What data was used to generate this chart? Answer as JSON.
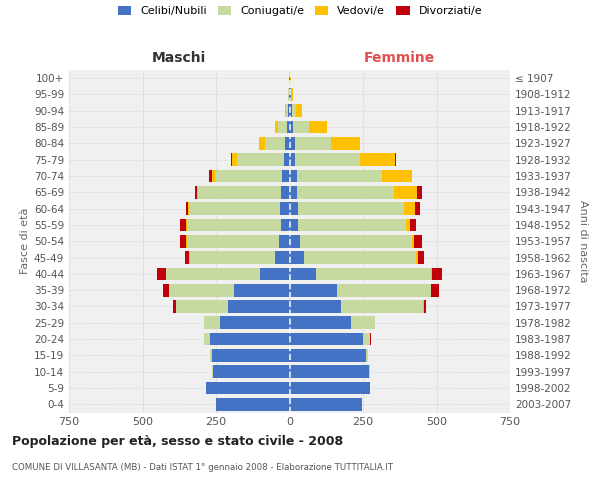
{
  "age_groups": [
    "0-4",
    "5-9",
    "10-14",
    "15-19",
    "20-24",
    "25-29",
    "30-34",
    "35-39",
    "40-44",
    "45-49",
    "50-54",
    "55-59",
    "60-64",
    "65-69",
    "70-74",
    "75-79",
    "80-84",
    "85-89",
    "90-94",
    "95-99",
    "100+"
  ],
  "birth_years": [
    "2003-2007",
    "1998-2002",
    "1993-1997",
    "1988-1992",
    "1983-1987",
    "1978-1982",
    "1973-1977",
    "1968-1972",
    "1963-1967",
    "1958-1962",
    "1953-1957",
    "1948-1952",
    "1943-1947",
    "1938-1942",
    "1933-1937",
    "1928-1932",
    "1923-1927",
    "1918-1922",
    "1913-1917",
    "1908-1912",
    "≤ 1907"
  ],
  "maschi": {
    "celibe": [
      250,
      285,
      260,
      265,
      270,
      235,
      210,
      190,
      100,
      50,
      35,
      30,
      32,
      30,
      25,
      20,
      15,
      8,
      5,
      3,
      2
    ],
    "coniugato": [
      0,
      0,
      2,
      5,
      20,
      55,
      175,
      220,
      320,
      290,
      315,
      320,
      310,
      280,
      230,
      160,
      70,
      30,
      8,
      2,
      1
    ],
    "vedovo": [
      0,
      0,
      0,
      0,
      0,
      0,
      0,
      0,
      1,
      1,
      2,
      2,
      3,
      5,
      10,
      15,
      20,
      10,
      3,
      1,
      0
    ],
    "divorziato": [
      0,
      0,
      0,
      0,
      2,
      2,
      10,
      20,
      30,
      15,
      20,
      20,
      8,
      5,
      8,
      5,
      0,
      0,
      0,
      0,
      0
    ]
  },
  "femmine": {
    "nubile": [
      245,
      275,
      270,
      260,
      250,
      210,
      175,
      160,
      90,
      50,
      35,
      30,
      28,
      25,
      25,
      20,
      20,
      12,
      8,
      4,
      2
    ],
    "coniugata": [
      0,
      0,
      3,
      8,
      25,
      80,
      280,
      320,
      390,
      380,
      380,
      365,
      360,
      330,
      290,
      220,
      120,
      55,
      15,
      2,
      1
    ],
    "vedova": [
      0,
      0,
      0,
      0,
      0,
      0,
      1,
      2,
      5,
      8,
      10,
      15,
      40,
      80,
      100,
      120,
      100,
      60,
      20,
      5,
      2
    ],
    "divorziata": [
      0,
      0,
      0,
      0,
      2,
      2,
      8,
      25,
      35,
      20,
      25,
      20,
      15,
      15,
      3,
      2,
      0,
      0,
      0,
      0,
      0
    ]
  },
  "colors": {
    "celibe": "#4472c4",
    "coniugato": "#c5d9a0",
    "vedovo": "#ffc000",
    "divorziato": "#c0000b"
  },
  "xlim": 750,
  "maschi_label": "Maschi",
  "femmine_label": "Femmine",
  "ylabel_left": "Fasce di età",
  "ylabel_right": "Anni di nascita",
  "title": "Popolazione per età, sesso e stato civile - 2008",
  "subtitle": "COMUNE DI VILLASANTA (MB) - Dati ISTAT 1° gennaio 2008 - Elaborazione TUTTITALIA.IT",
  "legend_labels": [
    "Celibi/Nubili",
    "Coniugati/e",
    "Vedovi/e",
    "Divorziati/e"
  ],
  "bg_color": "#ffffff",
  "plot_bg": "#f0f0f0",
  "grid_color": "#cccccc"
}
